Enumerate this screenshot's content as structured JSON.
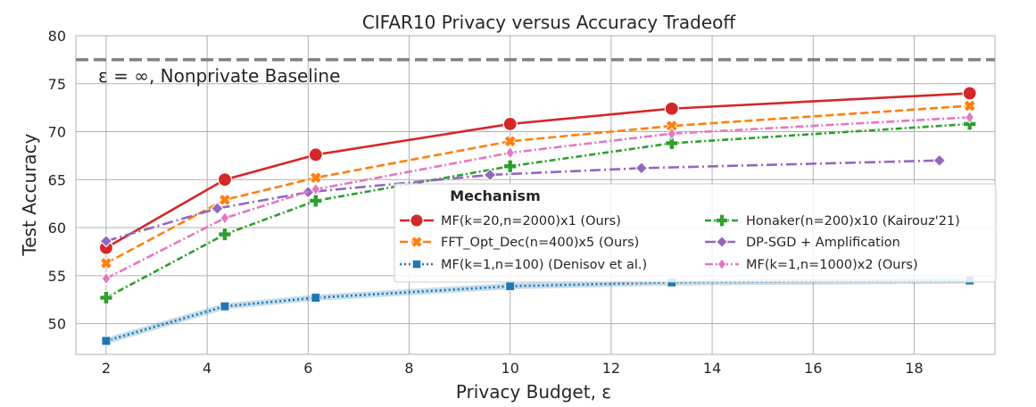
{
  "chart_data": {
    "type": "line",
    "title": "CIFAR10 Privacy versus Accuracy Tradeoff",
    "xlabel": "Privacy Budget, ε",
    "ylabel": "Test Accuracy",
    "xlim": [
      1.4,
      19.6
    ],
    "ylim": [
      46.8,
      80
    ],
    "xticks": [
      2,
      4,
      6,
      8,
      10,
      12,
      14,
      16,
      18
    ],
    "yticks": [
      50,
      55,
      60,
      65,
      70,
      75,
      80
    ],
    "grid": true,
    "legend_title": "Mechanism",
    "legend_placement": "center-right",
    "baseline": {
      "label": "ε = ∞, Nonprivate Baseline",
      "y": 77.5,
      "color": "#808080"
    },
    "series": [
      {
        "name": "MF(k=20,n=2000)x1 (Ours)",
        "color": "#d62728",
        "marker": "circle",
        "dash": "",
        "x": [
          2,
          4.35,
          6.15,
          10,
          13.2,
          19.1
        ],
        "y": [
          57.9,
          65.0,
          67.6,
          70.8,
          72.4,
          74.0
        ]
      },
      {
        "name": "FFT_Opt_Dec(n=400)x5 (Ours)",
        "color": "#ff7f0e",
        "marker": "x",
        "dash": "9,4",
        "x": [
          2,
          4.35,
          6.15,
          10,
          13.2,
          19.1
        ],
        "y": [
          56.3,
          62.9,
          65.2,
          69.0,
          70.6,
          72.7
        ]
      },
      {
        "name": "MF(k=1,n=100) (Denisov et al.)",
        "color": "#1f77b4",
        "marker": "square",
        "dash": "2,3",
        "x": [
          2,
          4.35,
          6.15,
          10,
          13.2,
          19.1
        ],
        "y": [
          48.2,
          51.8,
          52.7,
          53.9,
          54.3,
          54.5
        ]
      },
      {
        "name": "Honaker(n=200)x10 (Kairouz'21)",
        "color": "#2ca02c",
        "marker": "plus",
        "dash": "7,3,2,3",
        "x": [
          2,
          4.35,
          6.15,
          10,
          13.2,
          19.1
        ],
        "y": [
          52.7,
          59.3,
          62.8,
          66.4,
          68.8,
          70.8
        ]
      },
      {
        "name": "DP-SGD + Amplification",
        "color": "#9467bd",
        "marker": "diamond",
        "dash": "12,4,2,4",
        "x": [
          2,
          4.2,
          6.0,
          9.6,
          12.6,
          18.5
        ],
        "y": [
          58.6,
          62.0,
          63.7,
          65.5,
          66.2,
          67.0
        ]
      },
      {
        "name": "MF(k=1,n=1000)x2 (Ours)",
        "color": "#e377c2",
        "marker": "diamond-thin",
        "dash": "9,3,2,3",
        "x": [
          2,
          4.35,
          6.15,
          10,
          13.2,
          19.1
        ],
        "y": [
          54.7,
          61.0,
          64.0,
          67.8,
          69.8,
          71.5
        ]
      }
    ]
  }
}
